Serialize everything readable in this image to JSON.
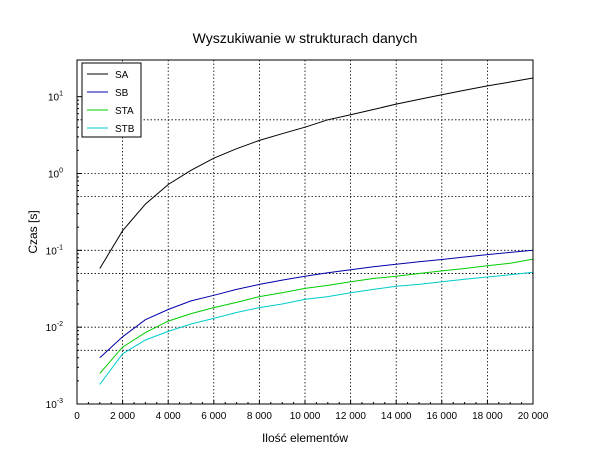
{
  "chart_data": {
    "type": "line",
    "title": "Wyszukiwanie w strukturach danych",
    "xlabel": "Ilość elementów",
    "ylabel": "Czas [s]",
    "xlim": [
      0,
      20000
    ],
    "ylim": [
      0.001,
      30
    ],
    "yscale": "log",
    "grid": true,
    "legend_position": "top-left",
    "x_ticks": [
      0,
      2000,
      4000,
      6000,
      8000,
      10000,
      12000,
      14000,
      16000,
      18000,
      20000
    ],
    "x_tick_labels": [
      "0",
      "2 000",
      "4 000",
      "6 000",
      "8 000",
      "10 000",
      "12 000",
      "14 000",
      "16 000",
      "18 000",
      "20 000"
    ],
    "y_ticks": [
      {
        "value": 0.001,
        "base": "10",
        "exp": "-3"
      },
      {
        "value": 0.01,
        "base": "10",
        "exp": "-2"
      },
      {
        "value": 0.1,
        "base": "10",
        "exp": "-1"
      },
      {
        "value": 1,
        "base": "10",
        "exp": "0"
      },
      {
        "value": 10,
        "base": "10",
        "exp": "1"
      }
    ],
    "x": [
      1000,
      2000,
      3000,
      4000,
      5000,
      6000,
      7000,
      8000,
      9000,
      10000,
      11000,
      12000,
      13000,
      14000,
      15000,
      16000,
      17000,
      18000,
      19000,
      20000
    ],
    "series": [
      {
        "name": "SA",
        "color": "#000000",
        "values": [
          0.058,
          0.18,
          0.4,
          0.72,
          1.1,
          1.58,
          2.1,
          2.7,
          3.3,
          4.0,
          5.0,
          5.8,
          6.8,
          8.0,
          9.2,
          10.6,
          12.1,
          13.8,
          15.5,
          17.5
        ]
      },
      {
        "name": "SB",
        "color": "#0000aa",
        "values": [
          0.004,
          0.0075,
          0.0125,
          0.017,
          0.022,
          0.026,
          0.031,
          0.036,
          0.041,
          0.046,
          0.051,
          0.056,
          0.061,
          0.066,
          0.071,
          0.076,
          0.082,
          0.088,
          0.094,
          0.1
        ]
      },
      {
        "name": "STA",
        "color": "#00cc00",
        "values": [
          0.0025,
          0.0055,
          0.0085,
          0.012,
          0.015,
          0.018,
          0.021,
          0.025,
          0.028,
          0.032,
          0.035,
          0.039,
          0.043,
          0.046,
          0.05,
          0.054,
          0.058,
          0.063,
          0.068,
          0.077
        ]
      },
      {
        "name": "STB",
        "color": "#00cccc",
        "values": [
          0.0018,
          0.0045,
          0.0068,
          0.0088,
          0.011,
          0.013,
          0.0155,
          0.018,
          0.02,
          0.023,
          0.025,
          0.028,
          0.031,
          0.034,
          0.036,
          0.039,
          0.042,
          0.045,
          0.048,
          0.052
        ]
      }
    ]
  }
}
